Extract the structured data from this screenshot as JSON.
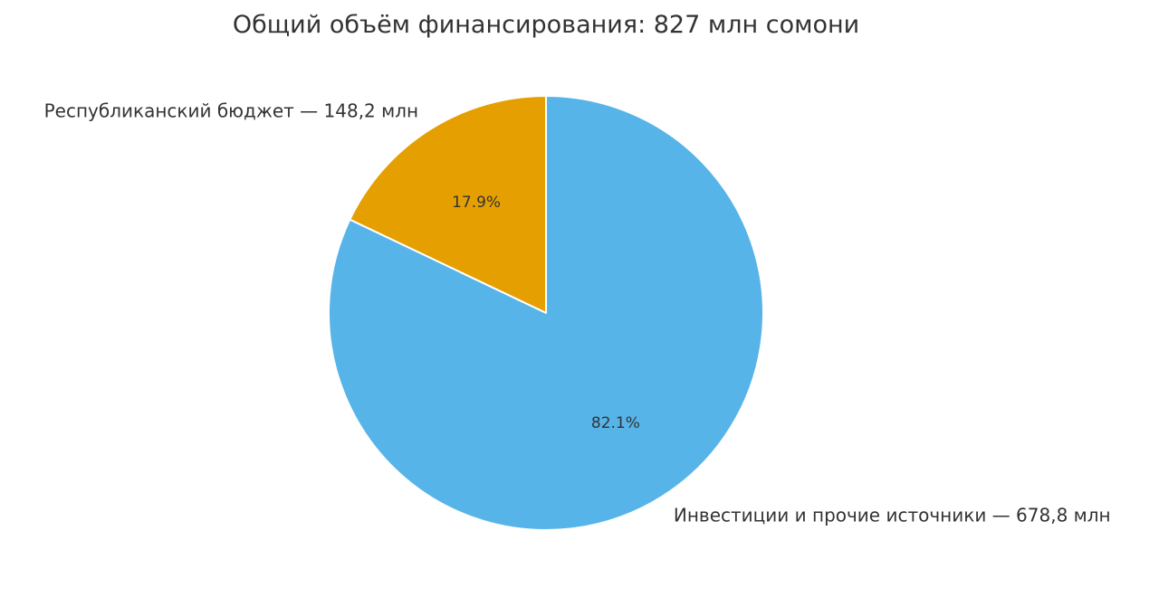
{
  "chart_data": {
    "type": "pie",
    "title": "Общий объём финансирования: 827 млн сомони",
    "slices": [
      {
        "label": "Республиканский бюджет — 148,2 млн",
        "value": 148.2,
        "percent_label": "17.9%",
        "color": "#E69F00"
      },
      {
        "label": "Инвестиции и прочие источники — 678,8 млн",
        "value": 678.8,
        "percent_label": "82.1%",
        "color": "#56B4E9"
      }
    ],
    "start_angle": "top, counter-clockwise",
    "legend": "none"
  }
}
